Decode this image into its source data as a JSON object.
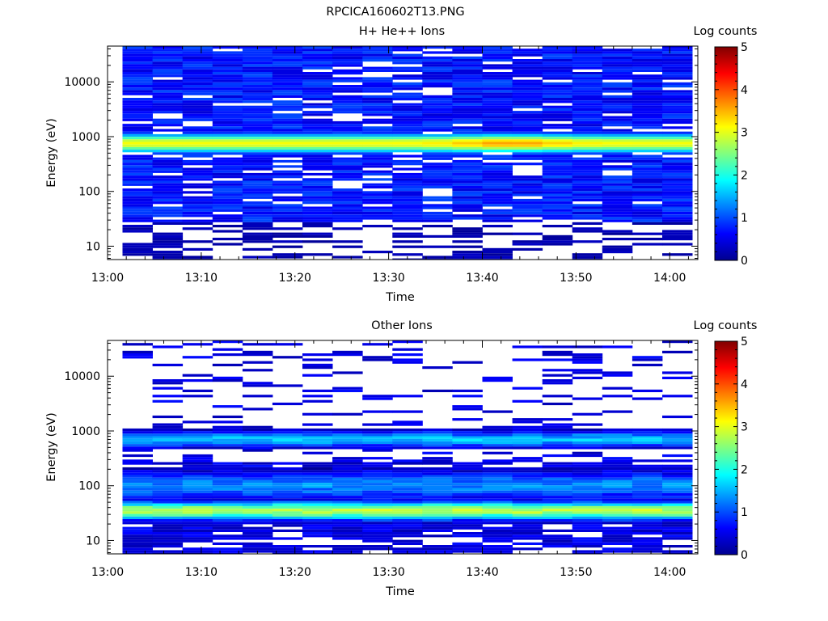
{
  "figure_title": "RPCICA160602T13.PNG",
  "chart_data": [
    {
      "type": "heatmap",
      "title": "H+ He++ Ions",
      "xlabel": "Time",
      "ylabel": "Energy (eV)",
      "x_ticks": [
        "13:00",
        "13:10",
        "13:20",
        "13:30",
        "13:40",
        "13:50",
        "14:00"
      ],
      "x_tick_minutes": [
        0,
        10,
        20,
        30,
        40,
        50,
        60
      ],
      "xlim_minutes": [
        0,
        63
      ],
      "y_scale": "log",
      "ylim": [
        5.7,
        45000
      ],
      "y_ticks": [
        "10",
        "100",
        "1000",
        "10000"
      ],
      "y_tick_values": [
        10,
        100,
        1000,
        10000
      ],
      "colorbar": {
        "label": "Log counts",
        "range": [
          0,
          5
        ],
        "ticks": [
          "0",
          "1",
          "2",
          "3",
          "4",
          "5"
        ]
      },
      "profile": {
        "peak_energy_eV": 750,
        "peak_log_counts": 3.1,
        "peak_max_log_counts": 3.6,
        "peak_max_time": "13:43",
        "background_log_counts": 0.4,
        "low_energy_floor_eV": 28
      }
    },
    {
      "type": "heatmap",
      "title": "Other Ions",
      "xlabel": "Time",
      "ylabel": "Energy (eV)",
      "x_ticks": [
        "13:00",
        "13:10",
        "13:20",
        "13:30",
        "13:40",
        "13:50",
        "14:00"
      ],
      "x_tick_minutes": [
        0,
        10,
        20,
        30,
        40,
        50,
        60
      ],
      "xlim_minutes": [
        0,
        63
      ],
      "y_scale": "log",
      "ylim": [
        5.7,
        45000
      ],
      "y_ticks": [
        "10",
        "100",
        "1000",
        "10000"
      ],
      "y_tick_values": [
        10,
        100,
        1000,
        10000
      ],
      "colorbar": {
        "label": "Log counts",
        "range": [
          0,
          5
        ],
        "ticks": [
          "0",
          "1",
          "2",
          "3",
          "4",
          "5"
        ]
      },
      "profile": {
        "peak_energy_eV": 35,
        "peak_log_counts": 2.8,
        "secondary_band_eV": 700,
        "secondary_log_counts": 1.6,
        "background_log_counts": 0.2
      }
    }
  ]
}
